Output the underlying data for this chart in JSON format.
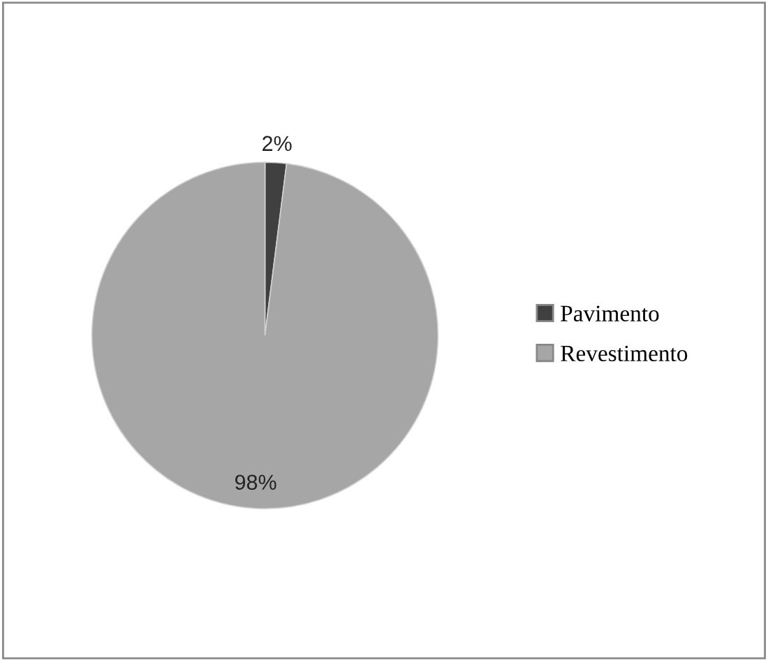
{
  "chart_data": {
    "type": "pie",
    "categories": [
      "Pavimento",
      "Revestimento"
    ],
    "values": [
      2,
      98
    ],
    "colors": [
      "#404040",
      "#a6a6a6"
    ],
    "value_labels": [
      "2%",
      "98%"
    ],
    "legend": "right"
  }
}
